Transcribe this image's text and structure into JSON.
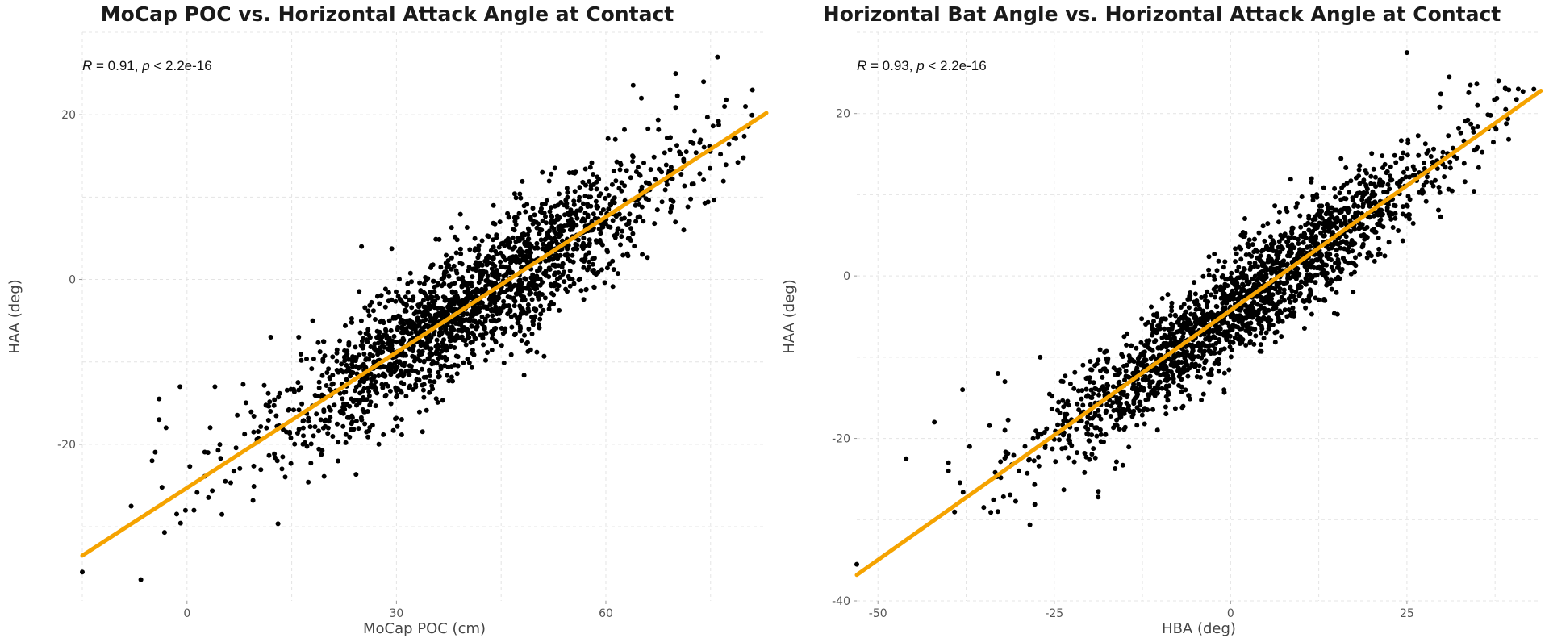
{
  "chart_data": [
    {
      "type": "scatter",
      "title": "MoCap POC vs. Horizontal Attack Angle at Contact",
      "xlabel": "MoCap POC (cm)",
      "ylabel": "HAA (deg)",
      "annotation": {
        "r_label": "R",
        "r_value": "= 0.91,",
        "p_label": "p",
        "p_value": "< 2.2e-16"
      },
      "xlim": [
        -15,
        83
      ],
      "ylim": [
        -39,
        30
      ],
      "x_ticks": [
        0,
        30,
        60
      ],
      "x_tick_labels": [
        "0",
        "30",
        "60"
      ],
      "y_ticks": [
        -20,
        0,
        20
      ],
      "y_tick_labels": [
        "-20",
        "0",
        "20"
      ],
      "grid": true,
      "fit_line": {
        "x": [
          -15,
          83
        ],
        "y": [
          -33.5,
          20.2
        ],
        "color": "#f5a300"
      },
      "points_summary": {
        "n": 2000,
        "slope": 0.548,
        "intercept": -25.3,
        "residual_sd": 4.0,
        "color": "#000000"
      },
      "outliers": [
        {
          "x": -15,
          "y": -35.5
        },
        {
          "x": -5,
          "y": -22
        },
        {
          "x": -8,
          "y": -27.5
        },
        {
          "x": -4,
          "y": -17
        },
        {
          "x": -4,
          "y": -14.5
        },
        {
          "x": -3,
          "y": -18
        },
        {
          "x": -1,
          "y": -13
        },
        {
          "x": 1,
          "y": -28
        },
        {
          "x": 3,
          "y": -21
        },
        {
          "x": 4,
          "y": -13
        },
        {
          "x": 5,
          "y": -28.5
        },
        {
          "x": 25,
          "y": 4
        },
        {
          "x": 76,
          "y": 27
        },
        {
          "x": 70,
          "y": 25
        },
        {
          "x": 74,
          "y": 24
        },
        {
          "x": 81,
          "y": 23
        },
        {
          "x": 80,
          "y": 21
        },
        {
          "x": 77,
          "y": 21
        },
        {
          "x": 18,
          "y": -5
        },
        {
          "x": 16,
          "y": -7
        },
        {
          "x": 12,
          "y": -7
        },
        {
          "x": 29,
          "y": -5
        }
      ]
    },
    {
      "type": "scatter",
      "title": "Horizontal Bat Angle vs. Horizontal Attack Angle at Contact",
      "xlabel": "HBA (deg)",
      "ylabel": "HAA (deg)",
      "annotation": {
        "r_label": "R",
        "r_value": "= 0.93,",
        "p_label": "p",
        "p_value": "< 2.2e-16"
      },
      "xlim": [
        -53,
        44
      ],
      "ylim": [
        -40,
        30
      ],
      "x_ticks": [
        -50,
        -25,
        0,
        25
      ],
      "x_tick_labels": [
        "-50",
        "-25",
        "0",
        "25"
      ],
      "y_ticks": [
        -40,
        -20,
        0,
        20
      ],
      "y_tick_labels": [
        "-40",
        "-20",
        "0",
        "20"
      ],
      "grid": true,
      "fit_line": {
        "x": [
          -53,
          44
        ],
        "y": [
          -36.8,
          22.8
        ],
        "color": "#f5a300"
      },
      "points_summary": {
        "n": 2000,
        "slope": 0.614,
        "intercept": -4.3,
        "residual_sd": 3.3,
        "color": "#000000"
      },
      "outliers": [
        {
          "x": -53,
          "y": -35.5
        },
        {
          "x": -46,
          "y": -22.5
        },
        {
          "x": -42,
          "y": -18
        },
        {
          "x": -40,
          "y": -23
        },
        {
          "x": -40,
          "y": -24
        },
        {
          "x": -38,
          "y": -14
        },
        {
          "x": -37,
          "y": -21
        },
        {
          "x": -35,
          "y": -28.5
        },
        {
          "x": -33,
          "y": -29
        },
        {
          "x": -33,
          "y": -12
        },
        {
          "x": -32,
          "y": -19
        },
        {
          "x": -32,
          "y": -13
        },
        {
          "x": -28,
          "y": -20
        },
        {
          "x": -27,
          "y": -10
        },
        {
          "x": 25,
          "y": 27.5
        },
        {
          "x": 31,
          "y": 24.5
        },
        {
          "x": 34,
          "y": 23.5
        },
        {
          "x": 35,
          "y": 21
        },
        {
          "x": 38,
          "y": 24
        },
        {
          "x": 43,
          "y": 23
        },
        {
          "x": 39,
          "y": 20.5
        }
      ]
    }
  ]
}
